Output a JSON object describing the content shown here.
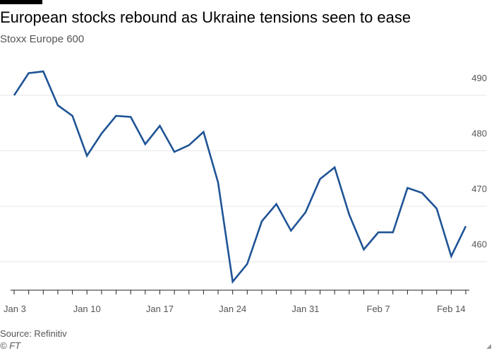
{
  "chart_data": {
    "type": "line",
    "title": "European stocks rebound as Ukraine tensions seen to ease",
    "subtitle": "Stoxx Europe 600",
    "source": "Source: Refinitiv",
    "credit": "© FT",
    "y_ticks": [
      460,
      470,
      480,
      490
    ],
    "ylim": [
      455,
      497
    ],
    "x_ticks": [
      {
        "label": "Jan 3",
        "index": 0
      },
      {
        "label": "Jan 10",
        "index": 5
      },
      {
        "label": "Jan 17",
        "index": 10
      },
      {
        "label": "Jan 24",
        "index": 15
      },
      {
        "label": "Jan 31",
        "index": 20
      },
      {
        "label": "Feb 7",
        "index": 25
      },
      {
        "label": "Feb 14",
        "index": 30
      }
    ],
    "grid": true,
    "colors": {
      "line": "#1f5496",
      "grid": "#e6e6e6",
      "axis": "#222222"
    },
    "series": [
      {
        "dates": [
          "Jan 3",
          "Jan 4",
          "Jan 5",
          "Jan 6",
          "Jan 7",
          "Jan 10",
          "Jan 11",
          "Jan 12",
          "Jan 13",
          "Jan 14",
          "Jan 17",
          "Jan 18",
          "Jan 19",
          "Jan 20",
          "Jan 21",
          "Jan 24",
          "Jan 25",
          "Jan 26",
          "Jan 27",
          "Jan 28",
          "Jan 31",
          "Feb 1",
          "Feb 2",
          "Feb 3",
          "Feb 4",
          "Feb 7",
          "Feb 8",
          "Feb 9",
          "Feb 10",
          "Feb 11",
          "Feb 14",
          "Feb 15"
        ],
        "values": [
          490.0,
          494.0,
          494.3,
          488.2,
          486.3,
          479.1,
          483.1,
          486.3,
          486.1,
          481.2,
          484.5,
          479.8,
          481.0,
          483.4,
          474.3,
          456.4,
          459.6,
          467.3,
          470.4,
          465.6,
          468.9,
          474.9,
          477.0,
          468.5,
          462.2,
          465.3,
          465.3,
          473.3,
          472.4,
          469.6,
          461.0,
          466.4
        ]
      }
    ]
  }
}
